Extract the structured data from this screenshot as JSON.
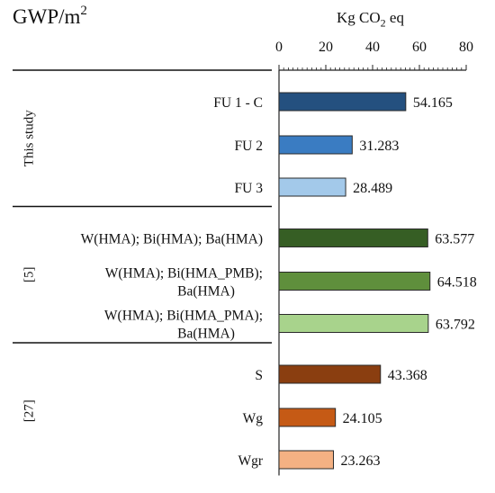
{
  "chart_data": {
    "type": "bar",
    "orientation": "horizontal",
    "title": "GWP/m",
    "title_superscript": "2",
    "unit_prefix": "Kg CO",
    "unit_subscript": "2",
    "unit_suffix": " eq",
    "xlim": [
      0,
      80
    ],
    "x_ticks": [
      "0",
      "20",
      "40",
      "60",
      "80"
    ],
    "grid": false,
    "groups": [
      {
        "name": "This study",
        "bars": [
          {
            "label": [
              "FU 1 - C"
            ],
            "value": 54.165,
            "value_label": "54.165",
            "color": "#24507f"
          },
          {
            "label": [
              "FU 2"
            ],
            "value": 31.283,
            "value_label": "31.283",
            "color": "#3a7cc2"
          },
          {
            "label": [
              "FU 3"
            ],
            "value": 28.489,
            "value_label": "28.489",
            "color": "#a3c9ea"
          }
        ]
      },
      {
        "name": "[5]",
        "bars": [
          {
            "label": [
              "W(HMA); Bi(HMA); Ba(HMA)"
            ],
            "value": 63.577,
            "value_label": "63.577",
            "color": "#365e24"
          },
          {
            "label": [
              "W(HMA); Bi(HMA_PMB);",
              "Ba(HMA)"
            ],
            "value": 64.518,
            "value_label": "64.518",
            "color": "#5f8f3c"
          },
          {
            "label": [
              "W(HMA); Bi(HMA_PMA);",
              "Ba(HMA)"
            ],
            "value": 63.792,
            "value_label": "63.792",
            "color": "#a8d38c"
          }
        ]
      },
      {
        "name": "[27]",
        "bars": [
          {
            "label": [
              "S"
            ],
            "value": 43.368,
            "value_label": "43.368",
            "color": "#8a3e10"
          },
          {
            "label": [
              "Wg"
            ],
            "value": 24.105,
            "value_label": "24.105",
            "color": "#c55a15"
          },
          {
            "label": [
              "Wgr"
            ],
            "value": 23.263,
            "value_label": "23.263",
            "color": "#f4b183"
          }
        ]
      }
    ]
  }
}
